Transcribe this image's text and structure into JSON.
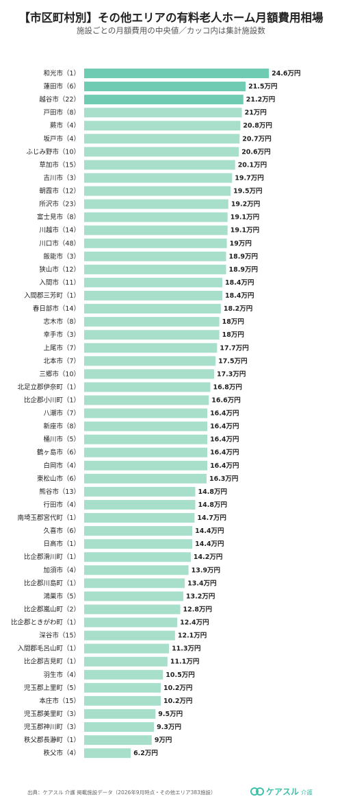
{
  "chart_data": {
    "type": "bar",
    "orientation": "horizontal",
    "title": "【市区町村別】その他エリアの有料老人ホーム月額費用相場",
    "subtitle": "施設ごとの月額費用の中央値／カッコ内は集計施設数",
    "categories": [
      "和光市（1）",
      "蓮田市（6）",
      "越谷市（22）",
      "戸田市（8）",
      "蕨市（4）",
      "坂戸市（4）",
      "ふじみ野市（10）",
      "草加市（15）",
      "吉川市（3）",
      "朝霞市（12）",
      "所沢市（23）",
      "富士見市（8）",
      "川越市（14）",
      "川口市（48）",
      "飯能市（3）",
      "狭山市（12）",
      "入間市（11）",
      "入間郡三芳町（1）",
      "春日部市（14）",
      "志木市（8）",
      "幸手市（3）",
      "上尾市（7）",
      "北本市（7）",
      "三郷市（10）",
      "北足立郡伊奈町（1）",
      "比企郡小川町（1）",
      "八潮市（7）",
      "新座市（8）",
      "桶川市（5）",
      "鶴ヶ島市（6）",
      "白岡市（4）",
      "東松山市（6）",
      "熊谷市（13）",
      "行田市（4）",
      "南埼玉郡宮代町（1）",
      "久喜市（6）",
      "日高市（1）",
      "比企郡滑川町（1）",
      "加須市（4）",
      "比企郡川島町（1）",
      "鴻巣市（5）",
      "比企郡嵐山町（2）",
      "比企郡ときがわ町（1）",
      "深谷市（15）",
      "入間郡毛呂山町（1）",
      "比企郡吉見町（1）",
      "羽生市（4）",
      "児玉郡上里町（5）",
      "本庄市（15）",
      "児玉郡美里町（3）",
      "児玉郡神川町（3）",
      "秩父郡長瀞町（1）",
      "秩父市（4）"
    ],
    "values": [
      24.6,
      21.5,
      21.2,
      21,
      20.8,
      20.7,
      20.6,
      20.1,
      19.7,
      19.5,
      19.2,
      19.1,
      19.1,
      19,
      18.9,
      18.9,
      18.4,
      18.4,
      18.2,
      18,
      18,
      17.7,
      17.5,
      17.3,
      16.8,
      16.6,
      16.4,
      16.4,
      16.4,
      16.4,
      16.4,
      16.3,
      14.8,
      14.8,
      14.7,
      14.4,
      14.4,
      14.2,
      13.9,
      13.4,
      13.2,
      12.8,
      12.4,
      12.1,
      11.3,
      11.1,
      10.5,
      10.2,
      10.2,
      9.5,
      9.3,
      9,
      6.2
    ],
    "value_labels": [
      "24.6万円",
      "21.5万円",
      "21.2万円",
      "21万円",
      "20.8万円",
      "20.7万円",
      "20.6万円",
      "20.1万円",
      "19.7万円",
      "19.5万円",
      "19.2万円",
      "19.1万円",
      "19.1万円",
      "19万円",
      "18.9万円",
      "18.9万円",
      "18.4万円",
      "18.4万円",
      "18.2万円",
      "18万円",
      "18万円",
      "17.7万円",
      "17.5万円",
      "17.3万円",
      "16.8万円",
      "16.6万円",
      "16.4万円",
      "16.4万円",
      "16.4万円",
      "16.4万円",
      "16.4万円",
      "16.3万円",
      "14.8万円",
      "14.8万円",
      "14.7万円",
      "14.4万円",
      "14.4万円",
      "14.2万円",
      "13.9万円",
      "13.4万円",
      "13.2万円",
      "12.8万円",
      "12.4万円",
      "12.1万円",
      "11.3万円",
      "11.1万円",
      "10.5万円",
      "10.2万円",
      "10.2万円",
      "9.5万円",
      "9.3万円",
      "9万円",
      "6.2万円"
    ],
    "color": "#a8dfcb",
    "highlight_color": "#6fcbb1",
    "highlight_count": 3
  },
  "footer": {
    "source": "出典：ケアスル 介護 掲載施設データ（2026年9月時点・その他エリア383施設）",
    "brand": "ケアスル",
    "brand_sub": "介護"
  }
}
